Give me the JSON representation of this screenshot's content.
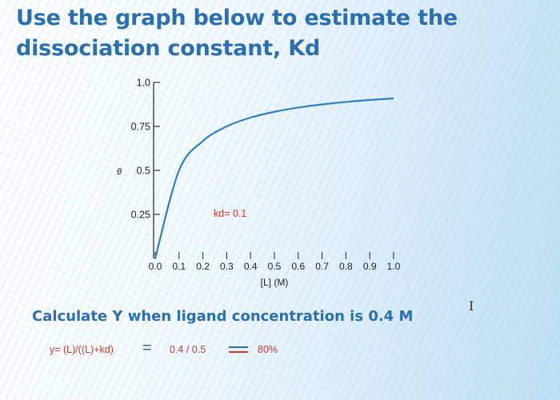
{
  "header": {
    "title": "Use the graph below to estimate the dissociation constant, Kd"
  },
  "chart_data": {
    "type": "line",
    "x": [
      0.0,
      0.1,
      0.2,
      0.3,
      0.4,
      0.5,
      0.6,
      0.7,
      0.8,
      0.9,
      1.0
    ],
    "xtick_labels": [
      "0.0",
      "0.1",
      "0.2",
      "0.3",
      "0.4",
      "0.5",
      "0.6",
      "0.7",
      "0.8",
      "0.9",
      "1.0"
    ],
    "series": [
      {
        "values": [
          0.0,
          0.5,
          0.667,
          0.75,
          0.8,
          0.833,
          0.857,
          0.875,
          0.889,
          0.9,
          0.909
        ]
      }
    ],
    "ytick_labels": [
      "1.0",
      "0.75",
      "0.5",
      "0.25"
    ],
    "ytick_values": [
      1.0,
      0.75,
      0.5,
      0.25
    ],
    "ylabel_symbol": "θ",
    "xlabel": "[L] (M)",
    "xlim": [
      0,
      1.0
    ],
    "ylim": [
      0,
      1.0
    ],
    "annotation": "kd= 0.1",
    "grid": false,
    "line_color": "#2f7fc1"
  },
  "problem": {
    "question": "Calculate Y when ligand concentration is 0.4 M",
    "formula": "y= (L)/((L)+kd)",
    "equals_sign": "=",
    "computation": "0.4 / 0.5",
    "result": "80%"
  },
  "colors": {
    "title": "#2c6fb0",
    "formula_text": "#d23a2a",
    "curve": "#2f7fc1"
  },
  "icons": {
    "cursor": "text-cursor-icon"
  }
}
